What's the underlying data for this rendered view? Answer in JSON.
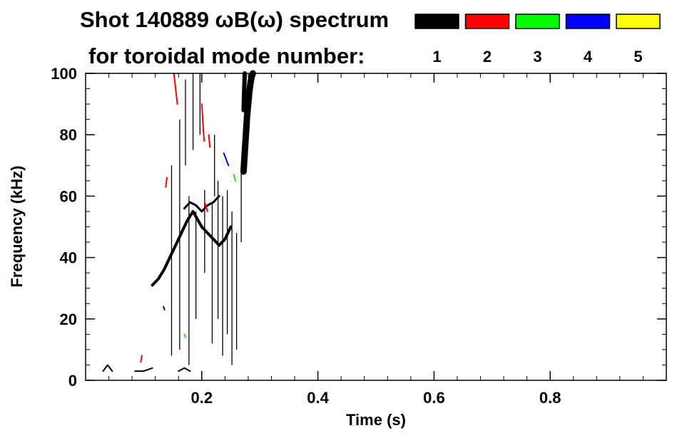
{
  "chart_data": {
    "type": "spectrogram",
    "title": "Shot 140889 ωB(ω) spectrum",
    "legend_caption": "for toroidal mode number:",
    "xlabel": "Time (s)",
    "ylabel": "Frequency (kHz)",
    "xlim": [
      0.0,
      1.0
    ],
    "ylim": [
      0,
      100
    ],
    "x_ticks": [
      0.2,
      0.4,
      0.6,
      0.8
    ],
    "x_tick_labels": [
      "0.2",
      "0.4",
      "0.6",
      "0.8"
    ],
    "y_ticks": [
      0,
      20,
      40,
      60,
      80,
      100
    ],
    "y_tick_labels": [
      "0",
      "20",
      "40",
      "60",
      "80",
      "100"
    ],
    "grid": false,
    "legend_position": "top-right",
    "modes": [
      {
        "n": "1",
        "color": "#000000"
      },
      {
        "n": "2",
        "color": "#ff0000"
      },
      {
        "n": "3",
        "color": "#00ff00"
      },
      {
        "n": "4",
        "color": "#0000ff"
      },
      {
        "n": "5",
        "color": "#ffff00"
      }
    ],
    "mode_traces": [
      {
        "mode": "1",
        "t": [
          0.115,
          0.125,
          0.135,
          0.145,
          0.155,
          0.165,
          0.175,
          0.185,
          0.2,
          0.21,
          0.22,
          0.23,
          0.24,
          0.25
        ],
        "f": [
          31,
          33,
          36,
          40,
          44,
          48,
          52,
          55,
          50,
          48,
          46,
          44,
          46,
          50
        ],
        "width": 4
      },
      {
        "mode": "1",
        "t": [
          0.17,
          0.18,
          0.19,
          0.2,
          0.21,
          0.22,
          0.23
        ],
        "f": [
          56,
          58,
          57,
          55,
          57,
          58,
          60
        ],
        "width": 3
      },
      {
        "mode": "1",
        "t": [
          0.272,
          0.274,
          0.276,
          0.278,
          0.28,
          0.282,
          0.284,
          0.286,
          0.288
        ],
        "f": [
          68,
          74,
          80,
          86,
          90,
          94,
          97,
          99,
          100
        ],
        "width": 9
      },
      {
        "mode": "1",
        "t": [
          0.272,
          0.273,
          0.274
        ],
        "f": [
          88,
          94,
          100
        ],
        "width": 6
      },
      {
        "mode": "1",
        "t": [
          0.03,
          0.038,
          0.046
        ],
        "f": [
          3,
          5,
          3
        ],
        "width": 2
      },
      {
        "mode": "1",
        "t": [
          0.085,
          0.1,
          0.115
        ],
        "f": [
          3,
          3,
          4
        ],
        "width": 2
      },
      {
        "mode": "1",
        "t": [
          0.16,
          0.17,
          0.18
        ],
        "f": [
          3,
          4,
          3
        ],
        "width": 2
      },
      {
        "mode": "2",
        "t": [
          0.152,
          0.155,
          0.158
        ],
        "f": [
          100,
          95,
          90
        ],
        "width": 2
      },
      {
        "mode": "2",
        "t": [
          0.2,
          0.202,
          0.204
        ],
        "f": [
          90,
          84,
          78
        ],
        "width": 2
      },
      {
        "mode": "2",
        "t": [
          0.212,
          0.214
        ],
        "f": [
          80,
          76
        ],
        "width": 2
      },
      {
        "mode": "2",
        "t": [
          0.138,
          0.14
        ],
        "f": [
          63,
          66
        ],
        "width": 2
      },
      {
        "mode": "2",
        "t": [
          0.205,
          0.21
        ],
        "f": [
          58,
          55
        ],
        "width": 2
      },
      {
        "mode": "2",
        "t": [
          0.095,
          0.097
        ],
        "f": [
          6,
          8
        ],
        "width": 2
      },
      {
        "mode": "3",
        "t": [
          0.255,
          0.258
        ],
        "f": [
          67,
          65
        ],
        "width": 2
      },
      {
        "mode": "3",
        "t": [
          0.17,
          0.172
        ],
        "f": [
          15,
          14
        ],
        "width": 2
      },
      {
        "mode": "4",
        "t": [
          0.238,
          0.242,
          0.246
        ],
        "f": [
          74,
          72,
          70
        ],
        "width": 2
      },
      {
        "mode": "4",
        "t": [
          0.134,
          0.136
        ],
        "f": [
          24,
          23
        ],
        "width": 2
      }
    ],
    "mode1_bursts": [
      {
        "t": 0.148,
        "f": [
          8,
          70
        ]
      },
      {
        "t": 0.162,
        "f": [
          10,
          85
        ]
      },
      {
        "t": 0.178,
        "f": [
          5,
          60
        ]
      },
      {
        "t": 0.19,
        "f": [
          20,
          55
        ]
      },
      {
        "t": 0.205,
        "f": [
          35,
          62
        ]
      },
      {
        "t": 0.218,
        "f": [
          12,
          58
        ]
      },
      {
        "t": 0.228,
        "f": [
          20,
          65
        ]
      },
      {
        "t": 0.236,
        "f": [
          8,
          60
        ]
      },
      {
        "t": 0.244,
        "f": [
          15,
          62
        ]
      },
      {
        "t": 0.252,
        "f": [
          5,
          55
        ]
      },
      {
        "t": 0.26,
        "f": [
          10,
          48
        ]
      },
      {
        "t": 0.268,
        "f": [
          45,
          70
        ]
      },
      {
        "t": 0.172,
        "f": [
          70,
          98
        ]
      },
      {
        "t": 0.185,
        "f": [
          75,
          100
        ]
      },
      {
        "t": 0.197,
        "f": [
          80,
          100
        ]
      },
      {
        "t": 0.222,
        "f": [
          60,
          80
        ]
      }
    ]
  }
}
